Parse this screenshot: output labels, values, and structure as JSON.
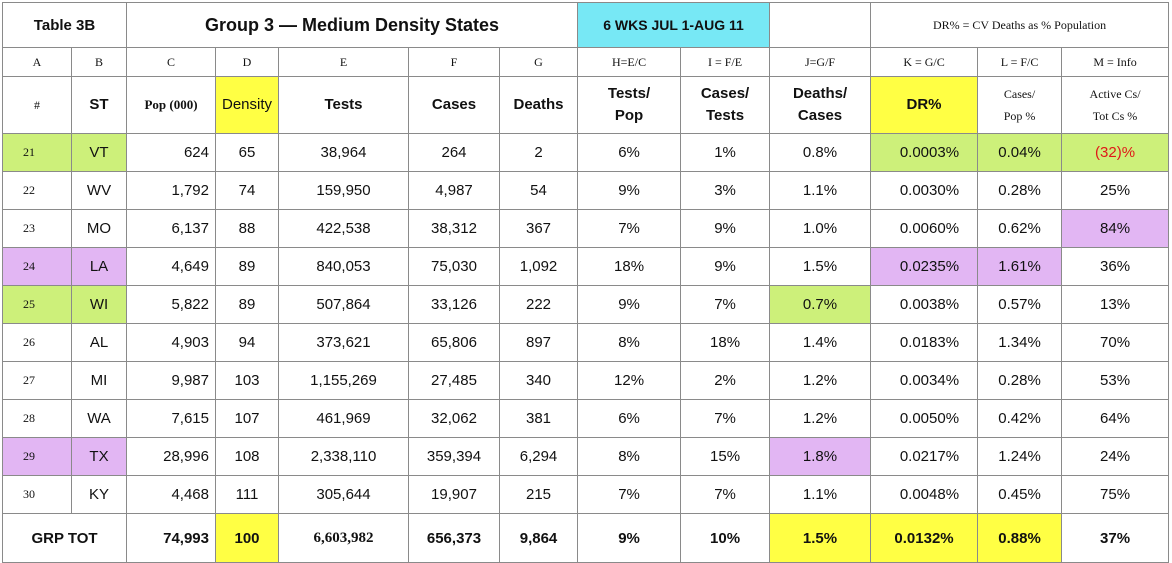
{
  "title": {
    "table_id": "Table 3B",
    "group": "Group 3  — Medium Density States",
    "period": "6 WKS JUL 1-AUG 11",
    "note": "DR% = CV Deaths as % Population"
  },
  "column_letters": [
    "A",
    "B",
    "C",
    "D",
    "E",
    "F",
    "G",
    "H=E/C",
    "I = F/E",
    "J=G/F",
    "K = G/C",
    "L = F/C",
    "M = Info"
  ],
  "headers": {
    "num": "#",
    "st": "ST",
    "pop": "Pop (000)",
    "density": "Density",
    "tests": "Tests",
    "cases": "Cases",
    "deaths": "Deaths",
    "tests_pop_1": "Tests/",
    "tests_pop_2": "Pop",
    "cases_tests_1": "Cases/",
    "cases_tests_2": "Tests",
    "deaths_cases_1": "Deaths/",
    "deaths_cases_2": "Cases",
    "dr": "DR%",
    "cases_pop_1": "Cases/",
    "cases_pop_2": "Pop %",
    "active_1": "Active Cs/",
    "active_2": "Tot Cs %"
  },
  "rows": [
    {
      "num": "21",
      "st": "VT",
      "pop": "624",
      "density": "65",
      "tests": "38,964",
      "cases": "264",
      "deaths": "2",
      "tests_pop": "6%",
      "cases_tests": "1%",
      "deaths_cases": "0.8%",
      "dr": "0.0003%",
      "cases_pop": "0.04%",
      "active": "(32)%"
    },
    {
      "num": "22",
      "st": "WV",
      "pop": "1,792",
      "density": "74",
      "tests": "159,950",
      "cases": "4,987",
      "deaths": "54",
      "tests_pop": "9%",
      "cases_tests": "3%",
      "deaths_cases": "1.1%",
      "dr": "0.0030%",
      "cases_pop": "0.28%",
      "active": "25%"
    },
    {
      "num": "23",
      "st": "MO",
      "pop": "6,137",
      "density": "88",
      "tests": "422,538",
      "cases": "38,312",
      "deaths": "367",
      "tests_pop": "7%",
      "cases_tests": "9%",
      "deaths_cases": "1.0%",
      "dr": "0.0060%",
      "cases_pop": "0.62%",
      "active": "84%"
    },
    {
      "num": "24",
      "st": "LA",
      "pop": "4,649",
      "density": "89",
      "tests": "840,053",
      "cases": "75,030",
      "deaths": "1,092",
      "tests_pop": "18%",
      "cases_tests": "9%",
      "deaths_cases": "1.5%",
      "dr": "0.0235%",
      "cases_pop": "1.61%",
      "active": "36%"
    },
    {
      "num": "25",
      "st": "WI",
      "pop": "5,822",
      "density": "89",
      "tests": "507,864",
      "cases": "33,126",
      "deaths": "222",
      "tests_pop": "9%",
      "cases_tests": "7%",
      "deaths_cases": "0.7%",
      "dr": "0.0038%",
      "cases_pop": "0.57%",
      "active": "13%"
    },
    {
      "num": "26",
      "st": "AL",
      "pop": "4,903",
      "density": "94",
      "tests": "373,621",
      "cases": "65,806",
      "deaths": "897",
      "tests_pop": "8%",
      "cases_tests": "18%",
      "deaths_cases": "1.4%",
      "dr": "0.0183%",
      "cases_pop": "1.34%",
      "active": "70%"
    },
    {
      "num": "27",
      "st": "MI",
      "pop": "9,987",
      "density": "103",
      "tests": "1,155,269",
      "cases": "27,485",
      "deaths": "340",
      "tests_pop": "12%",
      "cases_tests": "2%",
      "deaths_cases": "1.2%",
      "dr": "0.0034%",
      "cases_pop": "0.28%",
      "active": "53%"
    },
    {
      "num": "28",
      "st": "WA",
      "pop": "7,615",
      "density": "107",
      "tests": "461,969",
      "cases": "32,062",
      "deaths": "381",
      "tests_pop": "6%",
      "cases_tests": "7%",
      "deaths_cases": "1.2%",
      "dr": "0.0050%",
      "cases_pop": "0.42%",
      "active": "64%"
    },
    {
      "num": "29",
      "st": "TX",
      "pop": "28,996",
      "density": "108",
      "tests": "2,338,110",
      "cases": "359,394",
      "deaths": "6,294",
      "tests_pop": "8%",
      "cases_tests": "15%",
      "deaths_cases": "1.8%",
      "dr": "0.0217%",
      "cases_pop": "1.24%",
      "active": "24%"
    },
    {
      "num": "30",
      "st": "KY",
      "pop": "4,468",
      "density": "111",
      "tests": "305,644",
      "cases": "19,907",
      "deaths": "215",
      "tests_pop": "7%",
      "cases_tests": "7%",
      "deaths_cases": "1.1%",
      "dr": "0.0048%",
      "cases_pop": "0.45%",
      "active": "75%"
    }
  ],
  "total": {
    "label": "GRP TOT",
    "pop": "74,993",
    "density": "100",
    "tests": "6,603,982",
    "cases": "656,373",
    "deaths": "9,864",
    "tests_pop": "9%",
    "cases_tests": "10%",
    "deaths_cases": "1.5%",
    "dr": "0.0132%",
    "cases_pop": "0.88%",
    "active": "37%"
  },
  "colors": {
    "yellow": "#ffff44",
    "cyan": "#77e8f5",
    "green": "#cdf07a",
    "violet": "#e2b6f3",
    "negative_text": "#e01818"
  }
}
